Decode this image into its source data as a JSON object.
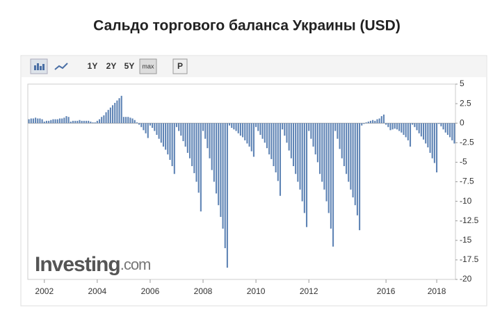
{
  "chart_data": {
    "type": "bar",
    "title": "Сальдо торгового баланса Украины (USD)",
    "toolbar": [
      "1Y",
      "2Y",
      "5Y",
      "max",
      "P"
    ],
    "watermark": [
      "Investing",
      ".com"
    ],
    "color": "#5f84b5",
    "categories": [
      null,
      null,
      null,
      null,
      null,
      null,
      null,
      "2002",
      null,
      null,
      null,
      null,
      null,
      null,
      null,
      null,
      null,
      null,
      null,
      null,
      null,
      null,
      null,
      null,
      null,
      null,
      null,
      null,
      null,
      null,
      null,
      "2004",
      null,
      null,
      null,
      null,
      null,
      null,
      null,
      null,
      null,
      null,
      null,
      null,
      null,
      null,
      null,
      null,
      null,
      null,
      null,
      null,
      null,
      null,
      null,
      "2006",
      null,
      null,
      null,
      null,
      null,
      null,
      null,
      null,
      null,
      null,
      null,
      null,
      null,
      null,
      null,
      null,
      null,
      null,
      null,
      null,
      null,
      null,
      null,
      "2008",
      null,
      null,
      null,
      null,
      null,
      null,
      null,
      null,
      null,
      null,
      null,
      null,
      null,
      null,
      null,
      null,
      null,
      null,
      null,
      null,
      null,
      null,
      null,
      "2010",
      null,
      null,
      null,
      null,
      null,
      null,
      null,
      null,
      null,
      null,
      null,
      null,
      null,
      null,
      null,
      null,
      null,
      null,
      null,
      null,
      null,
      null,
      null,
      "2012",
      null,
      null,
      null,
      null,
      null,
      null,
      null,
      null,
      null,
      null,
      null,
      null,
      null,
      null,
      null,
      null,
      null,
      null,
      null,
      null,
      null,
      null,
      null,
      null,
      null,
      null,
      null,
      null,
      null,
      null,
      null,
      null,
      null,
      null,
      "2016",
      null,
      null,
      null,
      null,
      null,
      null,
      null,
      null,
      null,
      null,
      null,
      null,
      null,
      null,
      null,
      null,
      null,
      null,
      null,
      null,
      null,
      null,
      "2018",
      null,
      null,
      null,
      null,
      null,
      null,
      null,
      null
    ],
    "values": [
      0.5,
      0.6,
      0.6,
      0.7,
      0.6,
      0.6,
      0.5,
      0.2,
      0.3,
      0.3,
      0.4,
      0.5,
      0.5,
      0.5,
      0.6,
      0.6,
      0.7,
      0.9,
      0.8,
      0.2,
      0.3,
      0.3,
      0.3,
      0.4,
      0.3,
      0.3,
      0.3,
      0.3,
      0.2,
      0.1,
      0.1,
      0.3,
      0.5,
      0.8,
      1.0,
      1.4,
      1.7,
      2.0,
      2.3,
      2.6,
      2.9,
      3.2,
      3.5,
      0.8,
      0.8,
      0.8,
      0.7,
      0.6,
      0.4,
      0.1,
      -0.2,
      -0.5,
      -0.9,
      -1.3,
      -1.9,
      -0.3,
      -0.6,
      -1.0,
      -1.5,
      -2.0,
      -2.5,
      -3.0,
      -3.4,
      -4.0,
      -4.7,
      -5.5,
      -6.5,
      -0.5,
      -1.0,
      -1.6,
      -2.3,
      -3.0,
      -3.8,
      -4.5,
      -5.5,
      -6.4,
      -7.5,
      -8.9,
      -11.3,
      -1.0,
      -2.0,
      -3.2,
      -4.5,
      -6.0,
      -7.5,
      -9.0,
      -10.5,
      -12.0,
      -13.5,
      -16.0,
      -18.5,
      -0.3,
      -0.6,
      -0.8,
      -1.0,
      -1.3,
      -1.6,
      -1.8,
      -2.2,
      -2.6,
      -3.0,
      -3.6,
      -4.3,
      -0.5,
      -1.0,
      -1.5,
      -2.0,
      -2.5,
      -3.2,
      -4.0,
      -4.6,
      -5.5,
      -6.3,
      -7.4,
      -9.3,
      -0.8,
      -1.6,
      -2.5,
      -3.5,
      -4.5,
      -5.5,
      -6.5,
      -7.5,
      -8.5,
      -10.0,
      -11.5,
      -13.3,
      -1.0,
      -2.0,
      -3.0,
      -4.0,
      -5.0,
      -6.5,
      -7.5,
      -8.5,
      -10.0,
      -11.5,
      -13.5,
      -15.8,
      -1.0,
      -2.0,
      -3.3,
      -4.5,
      -5.5,
      -6.5,
      -7.5,
      -8.5,
      -9.5,
      -10.5,
      -11.8,
      -13.7,
      -0.3,
      -0.1,
      0.1,
      0.2,
      0.3,
      0.4,
      0.3,
      0.5,
      0.6,
      0.9,
      1.1,
      -0.2,
      -0.5,
      -0.9,
      -0.8,
      -0.7,
      -0.8,
      -1.0,
      -1.2,
      -1.5,
      -1.8,
      -2.2,
      -3.0,
      -0.2,
      -0.5,
      -0.9,
      -1.3,
      -1.7,
      -2.1,
      -2.6,
      -3.1,
      -3.8,
      -4.5,
      -5.1,
      -6.3,
      -0.1,
      -0.4,
      -0.8,
      -1.2,
      -1.5,
      -1.8,
      -2.2,
      -2.6
    ],
    "ylim": [
      -20,
      5
    ],
    "yticks": [
      5,
      2.5,
      0,
      -2.5,
      -5,
      -7.5,
      -10,
      -12.5,
      -15,
      -17.5,
      -20
    ]
  }
}
